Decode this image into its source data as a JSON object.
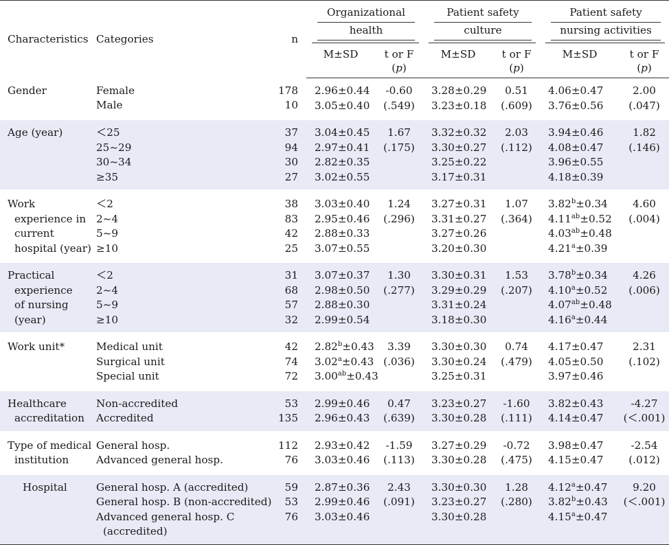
{
  "header": {
    "characteristics": "Characteristics",
    "categories": "Categories",
    "n": "n",
    "groups": [
      {
        "line1": "Organizational",
        "line2": "health"
      },
      {
        "line1": "Patient safety",
        "line2": "culture"
      },
      {
        "line1": "Patient safety",
        "line2": "nursing activities"
      }
    ],
    "msd": "M±SD",
    "t_or_f": "t or F",
    "p": "p"
  },
  "rows": [
    {
      "characteristic": [
        "Gender"
      ],
      "shade": false,
      "categories": [
        "Female",
        "Male"
      ],
      "n": [
        "178",
        "10"
      ],
      "org_msd": [
        "2.96±0.44",
        "3.05±0.40"
      ],
      "org_tf": [
        "-0.60",
        "(.549)"
      ],
      "psc_msd": [
        "3.28±0.29",
        "3.23±0.18"
      ],
      "psc_tf": [
        "0.51",
        "(.609)"
      ],
      "psna_msd": [
        "4.06±0.47",
        "3.76±0.56"
      ],
      "psna_tf": [
        "2.00",
        "(.047)"
      ]
    },
    {
      "characteristic": [
        "Age (year)"
      ],
      "shade": true,
      "categories": [
        "＜25",
        "25~29",
        "30~34",
        "≥35"
      ],
      "n": [
        "37",
        "94",
        "30",
        "27"
      ],
      "org_msd": [
        "3.04±0.45",
        "2.97±0.41",
        "2.82±0.35",
        "3.02±0.55"
      ],
      "org_tf": [
        "1.67",
        "(.175)"
      ],
      "psc_msd": [
        "3.32±0.32",
        "3.30±0.27",
        "3.25±0.22",
        "3.17±0.31"
      ],
      "psc_tf": [
        "2.03",
        "(.112)"
      ],
      "psna_msd": [
        "3.94±0.46",
        "4.08±0.47",
        "3.96±0.55",
        "4.18±0.39"
      ],
      "psna_tf": [
        "1.82",
        "(.146)"
      ]
    },
    {
      "characteristic": [
        "Work",
        "experience in",
        "current",
        "hospital (year)"
      ],
      "shade": false,
      "categories": [
        "＜2",
        "2~4",
        "5~9",
        "≥10"
      ],
      "n": [
        "38",
        "83",
        "42",
        "25"
      ],
      "org_msd": [
        "3.03±0.40",
        "2.95±0.46",
        "2.88±0.33",
        "3.07±0.55"
      ],
      "org_tf": [
        "1.24",
        "(.296)"
      ],
      "psc_msd": [
        "3.27±0.31",
        "3.31±0.27",
        "3.27±0.26",
        "3.20±0.30"
      ],
      "psc_tf": [
        "1.07",
        "(.364)"
      ],
      "psna_msd": [
        {
          "m": "3.82",
          "sup": "b",
          "sd": "±0.34"
        },
        {
          "m": "4.11",
          "sup": "ab",
          "sd": "±0.52"
        },
        {
          "m": "4.03",
          "sup": "ab",
          "sd": "±0.48"
        },
        {
          "m": "4.21",
          "sup": "a",
          "sd": "±0.39"
        }
      ],
      "psna_tf": [
        "4.60",
        "(.004)"
      ]
    },
    {
      "characteristic": [
        "Practical",
        "experience",
        "of nursing",
        "(year)"
      ],
      "shade": true,
      "categories": [
        "＜2",
        "2~4",
        "5~9",
        "≥10"
      ],
      "n": [
        "31",
        "68",
        "57",
        "32"
      ],
      "org_msd": [
        "3.07±0.37",
        "2.98±0.50",
        "2.88±0.30",
        "2.99±0.54"
      ],
      "org_tf": [
        "1.30",
        "(.277)"
      ],
      "psc_msd": [
        "3.30±0.31",
        "3.29±0.29",
        "3.31±0.24",
        "3.18±0.30"
      ],
      "psc_tf": [
        "1.53",
        "(.207)"
      ],
      "psna_msd": [
        {
          "m": "3.78",
          "sup": "b",
          "sd": "±0.34"
        },
        {
          "m": "4.10",
          "sup": "a",
          "sd": "±0.52"
        },
        {
          "m": "4.07",
          "sup": "ab",
          "sd": "±0.48"
        },
        {
          "m": "4.16",
          "sup": "a",
          "sd": "±0.44"
        }
      ],
      "psna_tf": [
        "4.26",
        "(.006)"
      ]
    },
    {
      "characteristic": [
        "Work unit*"
      ],
      "shade": false,
      "categories": [
        "Medical unit",
        "Surgical unit",
        "Special unit"
      ],
      "n": [
        "42",
        "74",
        "72"
      ],
      "org_msd": [
        {
          "m": "2.82",
          "sup": "b",
          "sd": "±0.43"
        },
        {
          "m": "3.02",
          "sup": "a",
          "sd": "±0.43"
        },
        {
          "m": "3.00",
          "sup": "ab",
          "sd": "±0.43"
        }
      ],
      "org_tf": [
        "3.39",
        "(.036)"
      ],
      "psc_msd": [
        "3.30±0.30",
        "3.30±0.24",
        "3.25±0.31"
      ],
      "psc_tf": [
        "0.74",
        "(.479)"
      ],
      "psna_msd": [
        "4.17±0.47",
        "4.05±0.50",
        "3.97±0.46"
      ],
      "psna_tf": [
        "2.31",
        "(.102)"
      ]
    },
    {
      "characteristic": [
        "Healthcare",
        "accreditation"
      ],
      "shade": true,
      "categories": [
        "Non-accredited",
        "Accredited"
      ],
      "n": [
        "53",
        "135"
      ],
      "org_msd": [
        "2.99±0.46",
        "2.96±0.43"
      ],
      "org_tf": [
        "0.47",
        "(.639)"
      ],
      "psc_msd": [
        "3.23±0.27",
        "3.30±0.28"
      ],
      "psc_tf": [
        "-1.60",
        "(.111)"
      ],
      "psna_msd": [
        "3.82±0.43",
        "4.14±0.47"
      ],
      "psna_tf": [
        "-4.27",
        "(＜.001)"
      ]
    },
    {
      "characteristic": [
        "Type of medical",
        "institution"
      ],
      "shade": false,
      "categories": [
        "General hosp.",
        "Advanced general hosp."
      ],
      "n": [
        "112",
        "76"
      ],
      "org_msd": [
        "2.93±0.42",
        "3.03±0.46"
      ],
      "org_tf": [
        "-1.59",
        "(.113)"
      ],
      "psc_msd": [
        "3.27±0.29",
        "3.30±0.28"
      ],
      "psc_tf": [
        "-0.72",
        "(.475)"
      ],
      "psna_msd": [
        "3.98±0.47",
        "4.15±0.47"
      ],
      "psna_tf": [
        "-2.54",
        "(.012)"
      ]
    },
    {
      "characteristic": [
        "Hospital"
      ],
      "shade": true,
      "categories": [
        "General hosp. A (accredited)",
        "General hosp. B (non-accredited)",
        "Advanced general hosp. C",
        "(accredited)"
      ],
      "n": [
        "59",
        "53",
        "76",
        ""
      ],
      "org_msd": [
        "2.87±0.36",
        "2.99±0.46",
        "3.03±0.46"
      ],
      "org_tf": [
        "2.43",
        "(.091)"
      ],
      "psc_msd": [
        "3.30±0.30",
        "3.23±0.27",
        "3.30±0.28"
      ],
      "psc_tf": [
        "1.28",
        "(.280)"
      ],
      "psna_msd": [
        {
          "m": "4.12",
          "sup": "a",
          "sd": "±0.47"
        },
        {
          "m": "3.82",
          "sup": "b",
          "sd": "±0.43"
        },
        {
          "m": "4.15",
          "sup": "a",
          "sd": "±0.47"
        }
      ],
      "psna_tf": [
        "9.20",
        "(＜.001)"
      ]
    }
  ]
}
